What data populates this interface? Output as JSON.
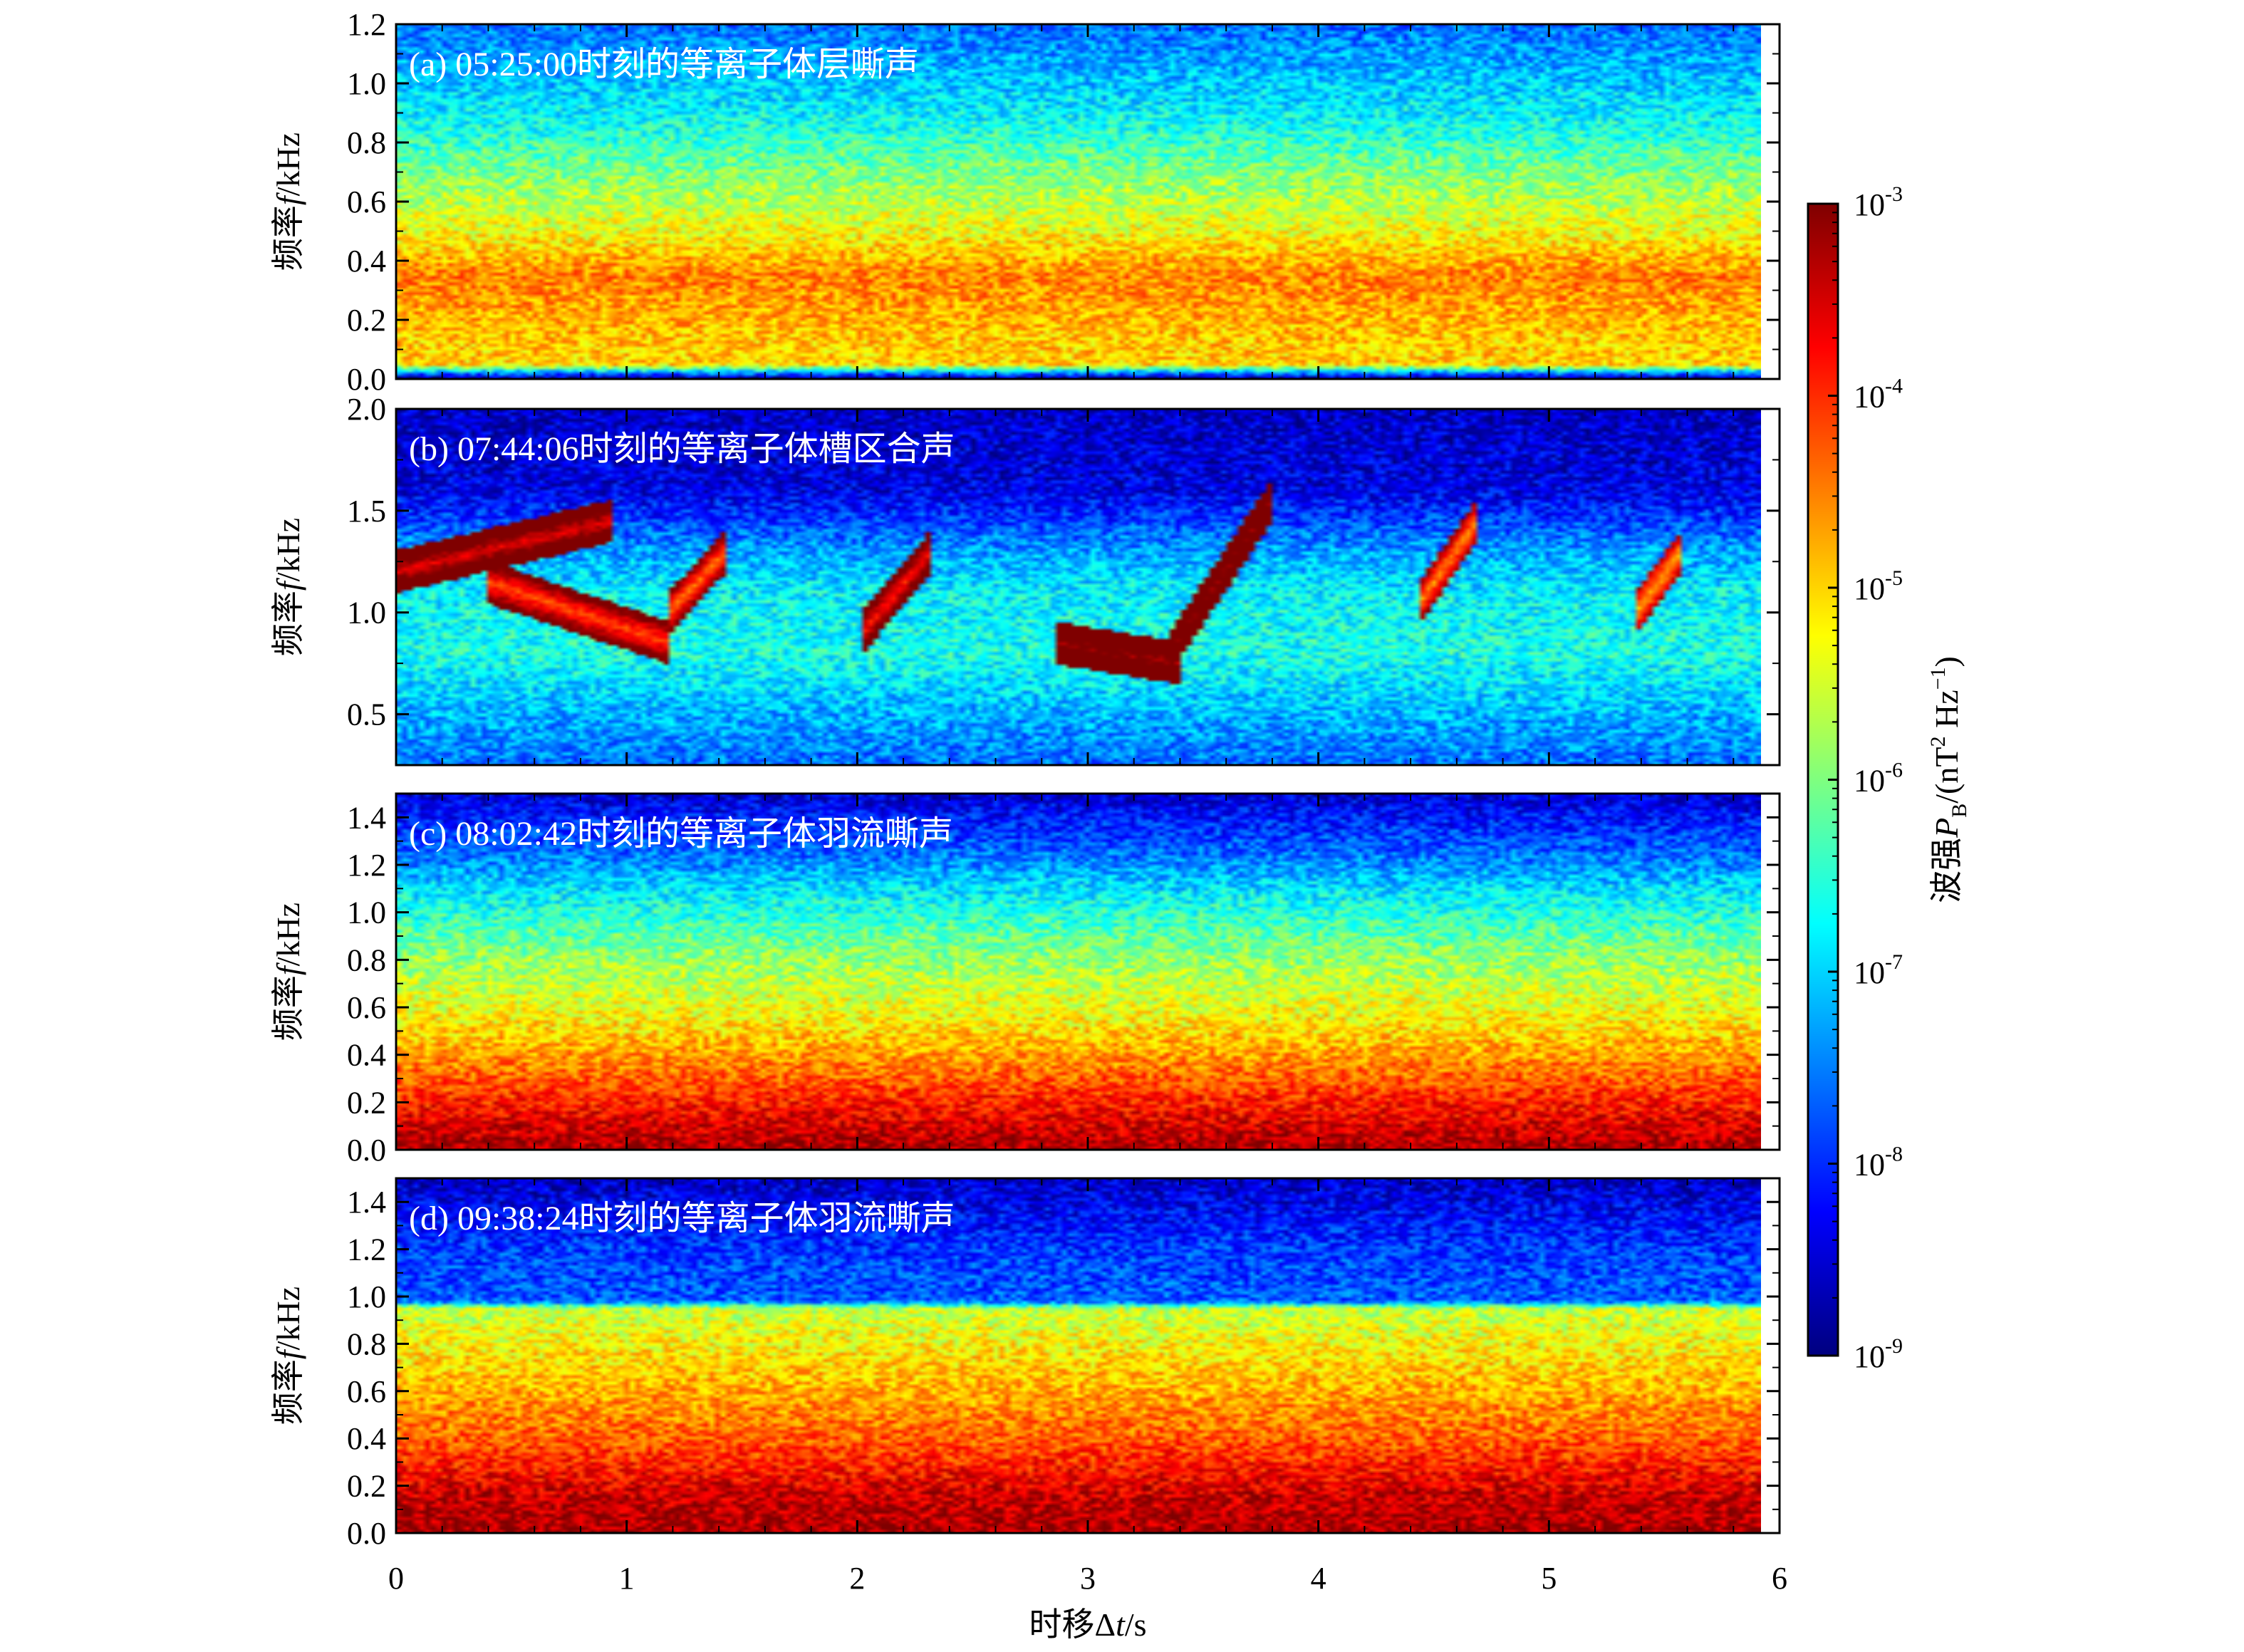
{
  "chart_data": {
    "type": "heatmap",
    "description_free": true,
    "xlabel_prefix": "时移Δ",
    "xlabel_var": "t",
    "xlabel_suffix": "/s",
    "xlim": [
      0,
      6
    ],
    "xticks": [
      "0",
      "1",
      "2",
      "3",
      "4",
      "5",
      "6"
    ],
    "ylabel_prefix": "频率",
    "ylabel_var": "f",
    "ylabel_suffix": "/kHz",
    "panels": [
      {
        "label": "(a) 05:25:00时刻的等离子体层嘶声",
        "ylim": [
          0,
          1.2
        ],
        "yticks": [
          "0.0",
          "0.2",
          "0.4",
          "0.6",
          "0.8",
          "1.0",
          "1.2"
        ],
        "band_profile": [
          {
            "f": 0.0,
            "log10P": -9.0
          },
          {
            "f": 0.05,
            "log10P": -5.0
          },
          {
            "f": 0.15,
            "log10P": -4.9
          },
          {
            "f": 0.35,
            "log10P": -4.5
          },
          {
            "f": 0.5,
            "log10P": -5.3
          },
          {
            "f": 0.7,
            "log10P": -6.0
          },
          {
            "f": 0.9,
            "log10P": -6.8
          },
          {
            "f": 1.2,
            "log10P": -7.6
          }
        ]
      },
      {
        "label": "(b) 07:44:06时刻的等离子体槽区合声",
        "ylim": [
          0.25,
          2.0
        ],
        "yticks": [
          "0.5",
          "1.0",
          "1.5",
          "2.0"
        ],
        "band_profile": [
          {
            "f": 0.25,
            "log10P": -7.6
          },
          {
            "f": 0.5,
            "log10P": -7.2
          },
          {
            "f": 0.8,
            "log10P": -6.6
          },
          {
            "f": 1.1,
            "log10P": -6.8
          },
          {
            "f": 1.3,
            "log10P": -7.3
          },
          {
            "f": 1.6,
            "log10P": -8.4
          },
          {
            "f": 2.0,
            "log10P": -8.6
          }
        ],
        "elements": [
          {
            "t0": 0.0,
            "t1": 0.95,
            "f0": 1.2,
            "f1": 1.45,
            "log10P": -3.6
          },
          {
            "t0": 0.4,
            "t1": 1.2,
            "f0": 1.15,
            "f1": 0.85,
            "log10P": -4.2
          },
          {
            "t0": 1.2,
            "t1": 1.45,
            "f0": 1.0,
            "f1": 1.3,
            "log10P": -4.4
          },
          {
            "t0": 2.05,
            "t1": 2.35,
            "f0": 0.9,
            "f1": 1.3,
            "log10P": -3.9
          },
          {
            "t0": 2.9,
            "t1": 3.45,
            "f0": 0.85,
            "f1": 0.75,
            "log10P": -3.2
          },
          {
            "t0": 3.4,
            "t1": 3.85,
            "f0": 0.8,
            "f1": 1.55,
            "log10P": -3.1
          },
          {
            "t0": 4.5,
            "t1": 4.75,
            "f0": 1.05,
            "f1": 1.45,
            "log10P": -4.6
          },
          {
            "t0": 5.45,
            "t1": 5.65,
            "f0": 1.0,
            "f1": 1.3,
            "log10P": -4.8
          }
        ]
      },
      {
        "label": "(c) 08:02:42时刻的等离子体羽流嘶声",
        "ylim": [
          0,
          1.5
        ],
        "yticks": [
          "0.0",
          "0.2",
          "0.4",
          "0.6",
          "0.8",
          "1.0",
          "1.2",
          "1.4"
        ],
        "band_profile": [
          {
            "f": 0.0,
            "log10P": -3.2
          },
          {
            "f": 0.1,
            "log10P": -3.5
          },
          {
            "f": 0.3,
            "log10P": -4.3
          },
          {
            "f": 0.55,
            "log10P": -5.2
          },
          {
            "f": 0.85,
            "log10P": -6.0
          },
          {
            "f": 1.05,
            "log10P": -6.7
          },
          {
            "f": 1.25,
            "log10P": -7.6
          },
          {
            "f": 1.5,
            "log10P": -8.5
          }
        ]
      },
      {
        "label": "(d) 09:38:24时刻的等离子体羽流嘶声",
        "ylim": [
          0,
          1.5
        ],
        "yticks": [
          "0.0",
          "0.2",
          "0.4",
          "0.6",
          "0.8",
          "1.0",
          "1.2",
          "1.4"
        ],
        "band_profile": [
          {
            "f": 0.0,
            "log10P": -3.2
          },
          {
            "f": 0.15,
            "log10P": -3.4
          },
          {
            "f": 0.4,
            "log10P": -4.3
          },
          {
            "f": 0.75,
            "log10P": -5.1
          },
          {
            "f": 0.95,
            "log10P": -5.6
          },
          {
            "f": 0.98,
            "log10P": -7.7
          },
          {
            "f": 1.2,
            "log10P": -7.9
          },
          {
            "f": 1.5,
            "log10P": -8.6
          }
        ]
      }
    ],
    "colorbar": {
      "scale": "log",
      "range": [
        1e-09,
        0.001
      ],
      "tick_exponents": [
        "-3",
        "-4",
        "-5",
        "-6",
        "-7",
        "-8",
        "-9"
      ],
      "label_prefix": "波强",
      "label_var": "P",
      "label_sub": "B",
      "label_units": "/(nT",
      "label_units_sup": "2",
      "label_units_mid": " Hz",
      "label_units_sup2": "−1",
      "label_units_end": ")"
    },
    "colormap": [
      "#00007f",
      "#0000ff",
      "#007fff",
      "#00ffff",
      "#7fff7f",
      "#ffff00",
      "#ff7f00",
      "#ff0000",
      "#7f0000"
    ]
  }
}
